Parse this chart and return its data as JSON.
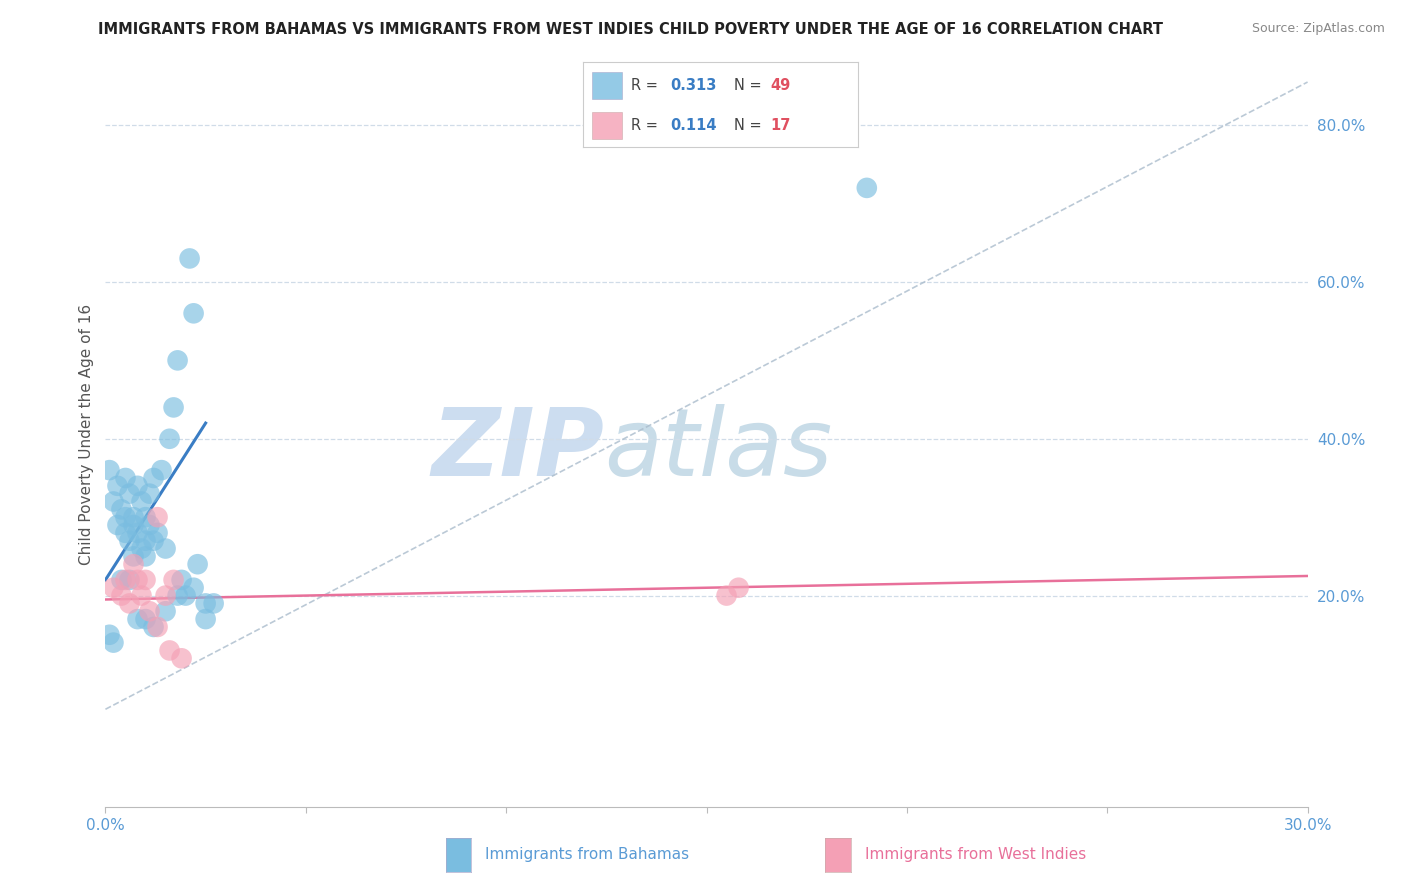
{
  "title": "IMMIGRANTS FROM BAHAMAS VS IMMIGRANTS FROM WEST INDIES CHILD POVERTY UNDER THE AGE OF 16 CORRELATION CHART",
  "source": "Source: ZipAtlas.com",
  "xlabel_bottom": [
    "Immigrants from Bahamas",
    "Immigrants from West Indies"
  ],
  "ylabel_left": "Child Poverty Under the Age of 16",
  "xlim": [
    0.0,
    0.3
  ],
  "ylim": [
    -0.07,
    0.88
  ],
  "yticks_right": [
    0.2,
    0.4,
    0.6,
    0.8
  ],
  "ytick_labels_right": [
    "20.0%",
    "40.0%",
    "60.0%",
    "80.0%"
  ],
  "xticks": [
    0.0,
    0.05,
    0.1,
    0.15,
    0.2,
    0.25,
    0.3
  ],
  "xtick_labels": [
    "0.0%",
    "",
    "",
    "",
    "",
    "",
    "30.0%"
  ],
  "legend_r1": "0.313",
  "legend_n1": "49",
  "legend_r2": "0.114",
  "legend_n2": "17",
  "color_blue": "#7abde0",
  "color_blue_line": "#3a7dc4",
  "color_pink": "#f4a0b5",
  "color_pink_line": "#e8709a",
  "color_legend_r": "#3a7dc4",
  "color_legend_n": "#e05060",
  "color_axis_label_blue": "#5a9bd5",
  "color_axis_label_pink": "#e8709a",
  "color_right_ytick": "#5a9bd5",
  "watermark_zip": "ZIP",
  "watermark_atlas": "atlas",
  "watermark_color": "#ccddf0",
  "blue_scatter_x": [
    0.001,
    0.002,
    0.003,
    0.003,
    0.004,
    0.005,
    0.005,
    0.005,
    0.006,
    0.006,
    0.007,
    0.007,
    0.007,
    0.008,
    0.008,
    0.009,
    0.009,
    0.01,
    0.01,
    0.01,
    0.011,
    0.011,
    0.012,
    0.012,
    0.013,
    0.014,
    0.015,
    0.016,
    0.017,
    0.018,
    0.019,
    0.02,
    0.021,
    0.022,
    0.023,
    0.025,
    0.027,
    0.001,
    0.002,
    0.004,
    0.006,
    0.008,
    0.01,
    0.012,
    0.015,
    0.018,
    0.022,
    0.025,
    0.19
  ],
  "blue_scatter_y": [
    0.36,
    0.32,
    0.34,
    0.29,
    0.31,
    0.3,
    0.28,
    0.35,
    0.33,
    0.27,
    0.3,
    0.25,
    0.29,
    0.34,
    0.28,
    0.32,
    0.26,
    0.3,
    0.27,
    0.25,
    0.33,
    0.29,
    0.27,
    0.35,
    0.28,
    0.36,
    0.26,
    0.4,
    0.44,
    0.5,
    0.22,
    0.2,
    0.63,
    0.56,
    0.24,
    0.19,
    0.19,
    0.15,
    0.14,
    0.22,
    0.22,
    0.17,
    0.17,
    0.16,
    0.18,
    0.2,
    0.21,
    0.17,
    0.72
  ],
  "pink_scatter_x": [
    0.002,
    0.004,
    0.005,
    0.006,
    0.007,
    0.008,
    0.009,
    0.01,
    0.011,
    0.013,
    0.015,
    0.017,
    0.155,
    0.158,
    0.013,
    0.016,
    0.019
  ],
  "pink_scatter_y": [
    0.21,
    0.2,
    0.22,
    0.19,
    0.24,
    0.22,
    0.2,
    0.22,
    0.18,
    0.16,
    0.2,
    0.22,
    0.2,
    0.21,
    0.3,
    0.13,
    0.12
  ],
  "blue_line_x": [
    0.0,
    0.025
  ],
  "blue_line_y": [
    0.22,
    0.42
  ],
  "pink_line_x": [
    0.0,
    0.3
  ],
  "pink_line_y": [
    0.195,
    0.225
  ],
  "diagonal_line_x": [
    0.0,
    0.3
  ],
  "diagonal_line_y": [
    0.055,
    0.855
  ],
  "grid_color": "#d0dce8",
  "background_color": "#ffffff"
}
